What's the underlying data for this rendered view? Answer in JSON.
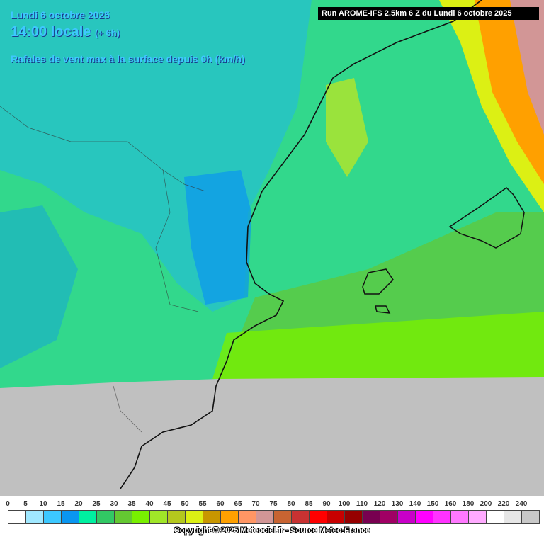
{
  "header": {
    "date": "Lundi 6 octobre 2025",
    "time": "14:00 locale",
    "offset": "(+ 6h)",
    "variable": "Rafales de vent max à la surface depuis 0h (km/h)",
    "run": "Run AROME-IFS 2.5km 6 Z du Lundi 6 octobre 2025"
  },
  "legend": {
    "values": [
      0,
      5,
      10,
      15,
      20,
      25,
      30,
      35,
      40,
      45,
      50,
      55,
      60,
      65,
      70,
      75,
      80,
      85,
      90,
      100,
      110,
      120,
      130,
      140,
      150,
      160,
      180,
      200,
      220,
      240
    ],
    "colors": [
      "#ffffff",
      "#a0e8ff",
      "#3cc8ff",
      "#0a96f0",
      "#00f0a0",
      "#32c864",
      "#64c832",
      "#78f000",
      "#a0e628",
      "#b4c81e",
      "#dcf014",
      "#c89600",
      "#ffa000",
      "#ff9664",
      "#d29696",
      "#c86432",
      "#c83232",
      "#ff0000",
      "#c80000",
      "#960000",
      "#780050",
      "#a00064",
      "#c800c8",
      "#ff00ff",
      "#ff32ff",
      "#ff78ff",
      "#ffaaff",
      "#ffffff",
      "#e6e6e6",
      "#c8c8c8"
    ]
  },
  "footer": {
    "copyright": "Copyright © 2025 Meteociel.fr - Source Meteo-France"
  }
}
